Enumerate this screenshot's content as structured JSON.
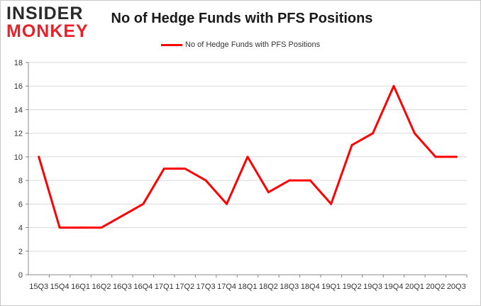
{
  "logo": {
    "line1": "INSIDER",
    "line2": "MONKEY"
  },
  "chart_data": {
    "type": "line",
    "title": "No of Hedge Funds with PFS Positions",
    "legend": "No of Hedge Funds with PFS Positions",
    "legend_position": "top-center",
    "xlabel": "",
    "ylabel": "",
    "categories": [
      "15Q3",
      "15Q4",
      "16Q1",
      "16Q2",
      "16Q3",
      "16Q4",
      "17Q1",
      "17Q2",
      "17Q3",
      "17Q4",
      "18Q1",
      "18Q2",
      "18Q3",
      "18Q4",
      "19Q1",
      "19Q2",
      "19Q3",
      "19Q4",
      "20Q1",
      "20Q2",
      "20Q3"
    ],
    "values": [
      10,
      4,
      4,
      4,
      5,
      6,
      9,
      9,
      8,
      6,
      10,
      7,
      8,
      8,
      6,
      11,
      12,
      16,
      12,
      10,
      10
    ],
    "ylim": [
      0,
      18
    ],
    "yticks": [
      0,
      2,
      4,
      6,
      8,
      10,
      12,
      14,
      16,
      18
    ],
    "grid": true,
    "line_color": "#ff0000"
  }
}
